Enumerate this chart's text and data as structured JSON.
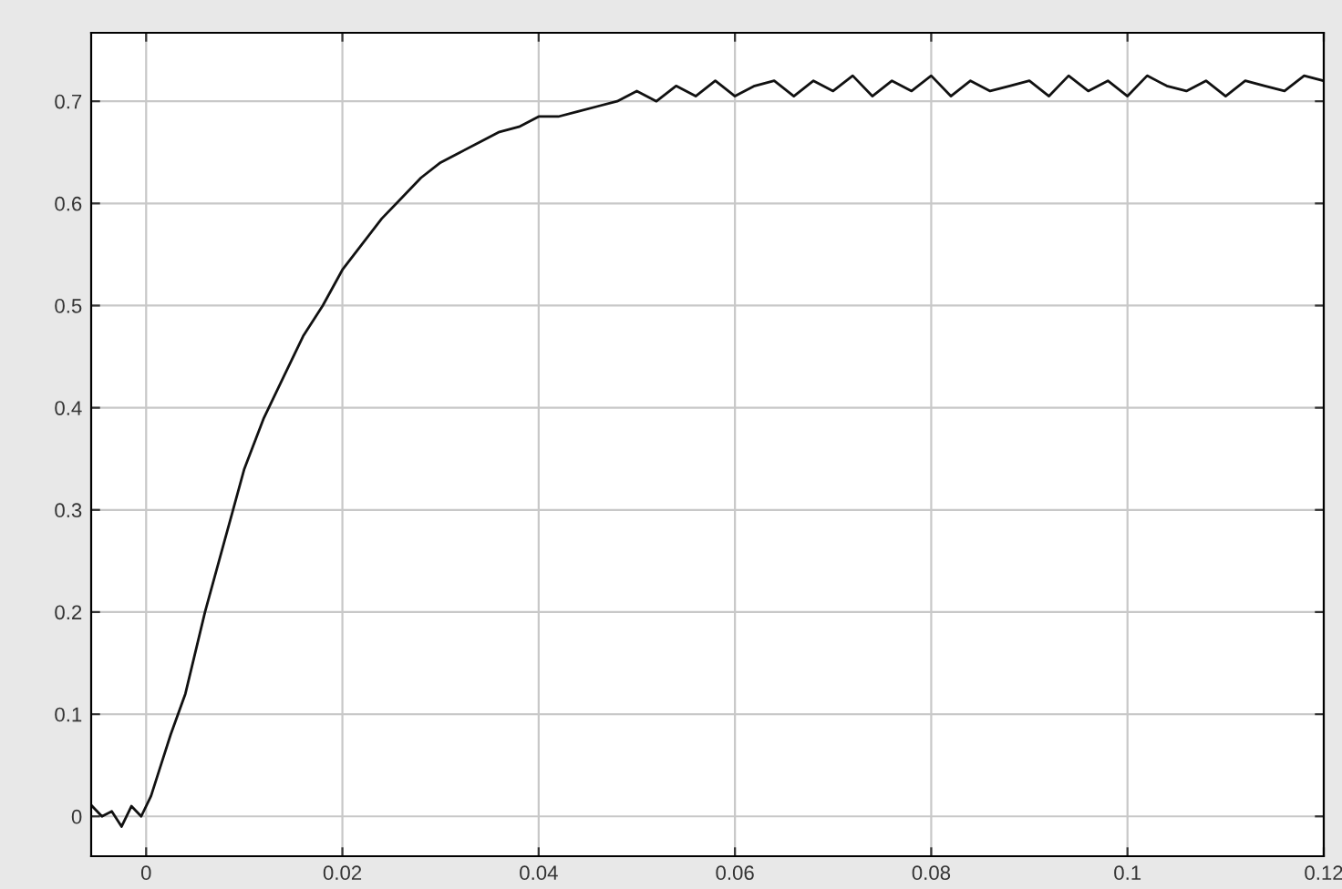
{
  "chart_data": {
    "type": "line",
    "xlim": [
      -0.0056,
      0.12
    ],
    "ylim": [
      -0.039,
      0.767
    ],
    "xticks": [
      0,
      0.02,
      0.04,
      0.06,
      0.08,
      0.1,
      0.12
    ],
    "yticks": [
      0,
      0.1,
      0.2,
      0.3,
      0.4,
      0.5,
      0.6,
      0.7
    ],
    "grid": true,
    "line_style": "solid",
    "marker": "none",
    "series": [
      {
        "color": "#111111",
        "x": [
          -0.0055,
          -0.0045,
          -0.0035,
          -0.0025,
          -0.0015,
          -0.0005,
          0.0005,
          0.0015,
          0.0025,
          0.004,
          0.006,
          0.008,
          0.01,
          0.012,
          0.014,
          0.016,
          0.018,
          0.02,
          0.022,
          0.024,
          0.026,
          0.028,
          0.03,
          0.032,
          0.034,
          0.036,
          0.038,
          0.04,
          0.042,
          0.044,
          0.046,
          0.048,
          0.05,
          0.052,
          0.054,
          0.056,
          0.058,
          0.06,
          0.062,
          0.064,
          0.066,
          0.068,
          0.07,
          0.072,
          0.074,
          0.076,
          0.078,
          0.08,
          0.082,
          0.084,
          0.086,
          0.088,
          0.09,
          0.092,
          0.094,
          0.096,
          0.098,
          0.1,
          0.102,
          0.104,
          0.106,
          0.108,
          0.11,
          0.112,
          0.114,
          0.116,
          0.118,
          0.12
        ],
        "values": [
          0.01,
          0.0,
          0.005,
          -0.01,
          0.01,
          0.0,
          0.02,
          0.05,
          0.08,
          0.12,
          0.2,
          0.27,
          0.34,
          0.39,
          0.43,
          0.47,
          0.5,
          0.535,
          0.56,
          0.585,
          0.605,
          0.625,
          0.64,
          0.65,
          0.66,
          0.67,
          0.675,
          0.685,
          0.685,
          0.69,
          0.695,
          0.7,
          0.71,
          0.7,
          0.715,
          0.705,
          0.72,
          0.705,
          0.715,
          0.72,
          0.705,
          0.72,
          0.71,
          0.725,
          0.705,
          0.72,
          0.71,
          0.725,
          0.705,
          0.72,
          0.71,
          0.715,
          0.72,
          0.705,
          0.725,
          0.71,
          0.72,
          0.705,
          0.725,
          0.715,
          0.71,
          0.72,
          0.705,
          0.72,
          0.715,
          0.71,
          0.725,
          0.72
        ]
      }
    ]
  }
}
